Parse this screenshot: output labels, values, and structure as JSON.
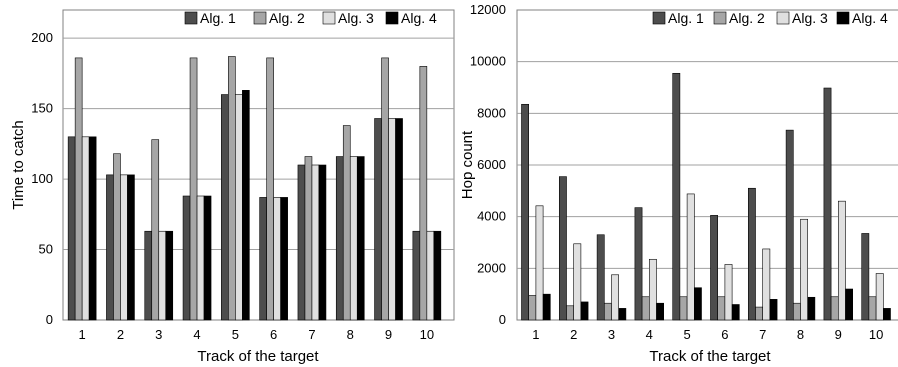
{
  "chart_data": [
    {
      "type": "bar",
      "xlabel": "Track of the target",
      "ylabel": "Time to catch",
      "categories": [
        "1",
        "2",
        "3",
        "4",
        "5",
        "6",
        "7",
        "8",
        "9",
        "10"
      ],
      "ylim": [
        0,
        220
      ],
      "yticks": [
        "0",
        "50",
        "100",
        "150",
        "200"
      ],
      "grid": true,
      "legend_position": "top-right",
      "series": [
        {
          "name": "Alg. 1",
          "color": "#4d4d4d",
          "values": [
            130,
            103,
            63,
            88,
            160,
            87,
            110,
            116,
            143,
            63
          ]
        },
        {
          "name": "Alg. 2",
          "color": "#a6a6a6",
          "values": [
            186,
            118,
            128,
            186,
            187,
            186,
            116,
            138,
            186,
            180
          ]
        },
        {
          "name": "Alg. 3",
          "color": "#e0e0e0",
          "values": [
            130,
            103,
            63,
            88,
            160,
            87,
            110,
            116,
            143,
            63
          ]
        },
        {
          "name": "Alg. 4",
          "color": "#000000",
          "values": [
            130,
            103,
            63,
            88,
            163,
            87,
            110,
            116,
            143,
            63
          ]
        }
      ]
    },
    {
      "type": "bar",
      "xlabel": "Track of the target",
      "ylabel": "Hop count",
      "categories": [
        "1",
        "2",
        "3",
        "4",
        "5",
        "6",
        "7",
        "8",
        "9",
        "10"
      ],
      "ylim": [
        0,
        12000
      ],
      "yticks": [
        "0",
        "2000",
        "4000",
        "6000",
        "8000",
        "10000",
        "12000"
      ],
      "grid": true,
      "legend_position": "top-right",
      "series": [
        {
          "name": "Alg. 1",
          "color": "#4d4d4d",
          "values": [
            8350,
            5550,
            3300,
            4350,
            9550,
            4050,
            5100,
            7350,
            8980,
            3350
          ]
        },
        {
          "name": "Alg. 2",
          "color": "#a6a6a6",
          "values": [
            950,
            550,
            650,
            900,
            900,
            900,
            500,
            650,
            900,
            900
          ]
        },
        {
          "name": "Alg. 3",
          "color": "#e0e0e0",
          "values": [
            4420,
            2950,
            1750,
            2350,
            4880,
            2150,
            2750,
            3900,
            4600,
            1800
          ]
        },
        {
          "name": "Alg. 4",
          "color": "#000000",
          "values": [
            1000,
            700,
            450,
            650,
            1250,
            600,
            800,
            880,
            1200,
            450
          ]
        }
      ]
    }
  ]
}
